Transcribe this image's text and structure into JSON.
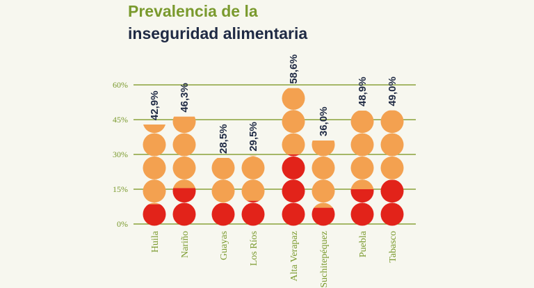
{
  "chart_data": {
    "type": "bar",
    "title_line1": "Prevalencia de la",
    "title_line2": "inseguridad alimentaria",
    "categories": [
      "Huila",
      "Nariño",
      "Guayas",
      "Los Ríos",
      "Alta Verapaz",
      "Suchitepéquez",
      "Puebla",
      "Tabasco"
    ],
    "values": [
      42.9,
      46.3,
      28.5,
      29.5,
      58.6,
      36.0,
      48.9,
      49.0
    ],
    "value_labels": [
      "42,9%",
      "46,3%",
      "28,5%",
      "29,5%",
      "58,6%",
      "36,0%",
      "48,9%",
      "49,0%"
    ],
    "severe_values": [
      8.5,
      15.5,
      9.0,
      10.0,
      30.0,
      7.0,
      15.0,
      19.0
    ],
    "yticks": [
      0,
      15,
      30,
      45,
      60
    ],
    "ytick_labels": [
      "0%",
      "15%",
      "30%",
      "45%",
      "60%"
    ],
    "ylim": [
      0,
      60
    ],
    "grid": true,
    "colors": {
      "title_line1": "#7a9a2e",
      "title_line2": "#1f2a44",
      "moderate": "#f3a150",
      "severe": "#e2231a",
      "grid": "#8aa23a",
      "tick_label": "#7a9a2e",
      "category_label": "#7a9a2e",
      "value_label": "#1f2a44"
    }
  }
}
